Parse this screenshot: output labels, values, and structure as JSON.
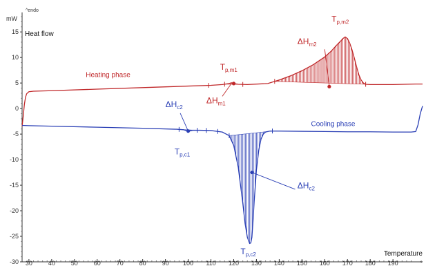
{
  "chart_data": {
    "type": "line",
    "unit_label": "mW",
    "endo_label": "^endo",
    "ylabel": "Heat flow",
    "xlabel": "Temperature",
    "xlim": [
      27,
      203
    ],
    "ylim": [
      -30,
      18
    ],
    "x_ticks": [
      30,
      40,
      50,
      60,
      70,
      80,
      90,
      100,
      110,
      120,
      130,
      140,
      150,
      160,
      170,
      180,
      190
    ],
    "x_tick_labels": [
      "30",
      "40",
      "50",
      "60",
      "70",
      "80",
      "90",
      "100",
      "110",
      "120",
      "130",
      "140",
      "150",
      "160",
      "170",
      "180",
      "190"
    ],
    "x_extra_label": "°",
    "y_ticks": [
      15,
      10,
      5,
      0,
      -5,
      -10,
      -15,
      -20,
      -25,
      -30
    ],
    "y_tick_labels": [
      "15",
      "10",
      "5",
      "0",
      "-5",
      "-10",
      "-15",
      "-20",
      "-25",
      "-30"
    ],
    "series": [
      {
        "name": "Heating phase",
        "color": "#c0282a",
        "x": [
          27,
          27.5,
          28,
          28.5,
          29,
          30,
          32,
          40,
          60,
          80,
          100,
          110,
          115,
          118,
          119,
          120,
          122,
          126,
          135,
          140,
          145,
          150,
          155,
          160,
          163,
          165,
          167,
          168,
          169,
          170,
          171,
          172,
          173,
          174,
          175,
          176,
          177,
          178,
          180,
          190,
          200,
          203
        ],
        "y": [
          -3.5,
          -1.5,
          0.8,
          2.2,
          2.9,
          3.3,
          3.4,
          3.5,
          3.8,
          4.1,
          4.4,
          4.55,
          4.7,
          4.9,
          5.05,
          4.9,
          4.75,
          4.7,
          4.9,
          5.6,
          6.4,
          7.4,
          8.6,
          10.1,
          11.3,
          12.3,
          13.2,
          13.7,
          14.0,
          13.7,
          12.8,
          11.5,
          9.9,
          8.2,
          6.6,
          5.6,
          5.0,
          4.75,
          4.7,
          4.7,
          4.8,
          4.8
        ]
      },
      {
        "name": "Cooling phase",
        "color": "#2a3fb5",
        "x": [
          27,
          30,
          40,
          60,
          80,
          95,
          98,
          100,
          102,
          105,
          110,
          115,
          118,
          120,
          122,
          124,
          125,
          126,
          127,
          127.5,
          128,
          128.5,
          129,
          130,
          131,
          132,
          133,
          134,
          136,
          138,
          140,
          150,
          160,
          170,
          180,
          190,
          198,
          200,
          201,
          202,
          203
        ],
        "y": [
          -3.3,
          -3.35,
          -3.45,
          -3.65,
          -3.85,
          -4.05,
          -4.15,
          -4.45,
          -4.25,
          -4.25,
          -4.3,
          -4.6,
          -5.3,
          -7.2,
          -11.5,
          -18.5,
          -22.5,
          -25.2,
          -26.4,
          -26.3,
          -25.2,
          -22.0,
          -18.2,
          -12.0,
          -8.2,
          -6.0,
          -5.0,
          -4.6,
          -4.4,
          -4.4,
          -4.4,
          -4.45,
          -4.5,
          -4.55,
          -4.55,
          -4.6,
          -4.6,
          -4.5,
          -3.2,
          -1.0,
          0.5
        ]
      }
    ],
    "integration_regions": [
      {
        "color": "#c0282a",
        "x_start": 116,
        "x_end": 124
      },
      {
        "color": "#c0282a",
        "x_start": 138,
        "x_end": 178
      },
      {
        "color": "#2a3fb5",
        "x_start": 96,
        "x_end": 104
      },
      {
        "color": "#2a3fb5",
        "x_start": 118,
        "x_end": 137
      }
    ],
    "range_ticks": [
      {
        "color": "#c0282a",
        "x": [
          109,
          116,
          124,
          138,
          178
        ]
      },
      {
        "color": "#2a3fb5",
        "x": [
          96,
          104,
          108,
          113,
          118,
          137
        ]
      }
    ],
    "markers": [
      {
        "color": "#c0282a",
        "x": 120,
        "y": 4.9
      },
      {
        "color": "#c0282a",
        "x": 162,
        "y": 4.3
      },
      {
        "color": "#2a3fb5",
        "x": 100,
        "y": -4.4
      },
      {
        "color": "#2a3fb5",
        "x": 128,
        "y": -12.5
      }
    ],
    "annotations": [
      {
        "main": "Heating phase",
        "sub": "",
        "color": "#c0282a",
        "x": 55,
        "y": 6.2,
        "kind": "phase"
      },
      {
        "main": "Cooling phase",
        "sub": "",
        "color": "#2a3fb5",
        "x": 154,
        "y": -3.4,
        "kind": "phase"
      },
      {
        "main": "T",
        "sub": "p,m1",
        "color": "#c0282a",
        "x": 114,
        "y": 7.6,
        "kind": "label"
      },
      {
        "main": "ΔH",
        "sub": "m1",
        "color": "#c0282a",
        "x": 108,
        "y": 1.0,
        "kind": "label"
      },
      {
        "main": "ΔH",
        "sub": "m2",
        "color": "#c0282a",
        "x": 148,
        "y": 12.6,
        "kind": "label"
      },
      {
        "main": "T",
        "sub": "p,m2",
        "color": "#c0282a",
        "x": 163,
        "y": 17.0,
        "kind": "label"
      },
      {
        "main": "ΔH",
        "sub": "c2",
        "color": "#2a3fb5",
        "x": 90,
        "y": 0.3,
        "kind": "label"
      },
      {
        "main": "T",
        "sub": "p,c1",
        "color": "#2a3fb5",
        "x": 94,
        "y": -9.0,
        "kind": "label"
      },
      {
        "main": "ΔH",
        "sub": "c2",
        "color": "#2a3fb5",
        "x": 148,
        "y": -15.6,
        "kind": "label"
      },
      {
        "main": "T",
        "sub": "p,c2",
        "color": "#2a3fb5",
        "x": 123,
        "y": -28.5,
        "kind": "label"
      }
    ],
    "leaders": [
      {
        "color": "#c0282a",
        "from": [
          119,
          4.9
        ],
        "to": [
          115,
          2.4
        ]
      },
      {
        "color": "#c0282a",
        "from": [
          160,
          11.6
        ],
        "to": [
          162,
          4.4
        ]
      },
      {
        "color": "#2a3fb5",
        "from": [
          96.5,
          -0.9
        ],
        "to": [
          100,
          -4.4
        ]
      },
      {
        "color": "#2a3fb5",
        "from": [
          147,
          -15.8
        ],
        "to": [
          128,
          -12.5
        ]
      }
    ],
    "grid": false,
    "legend": "none"
  }
}
